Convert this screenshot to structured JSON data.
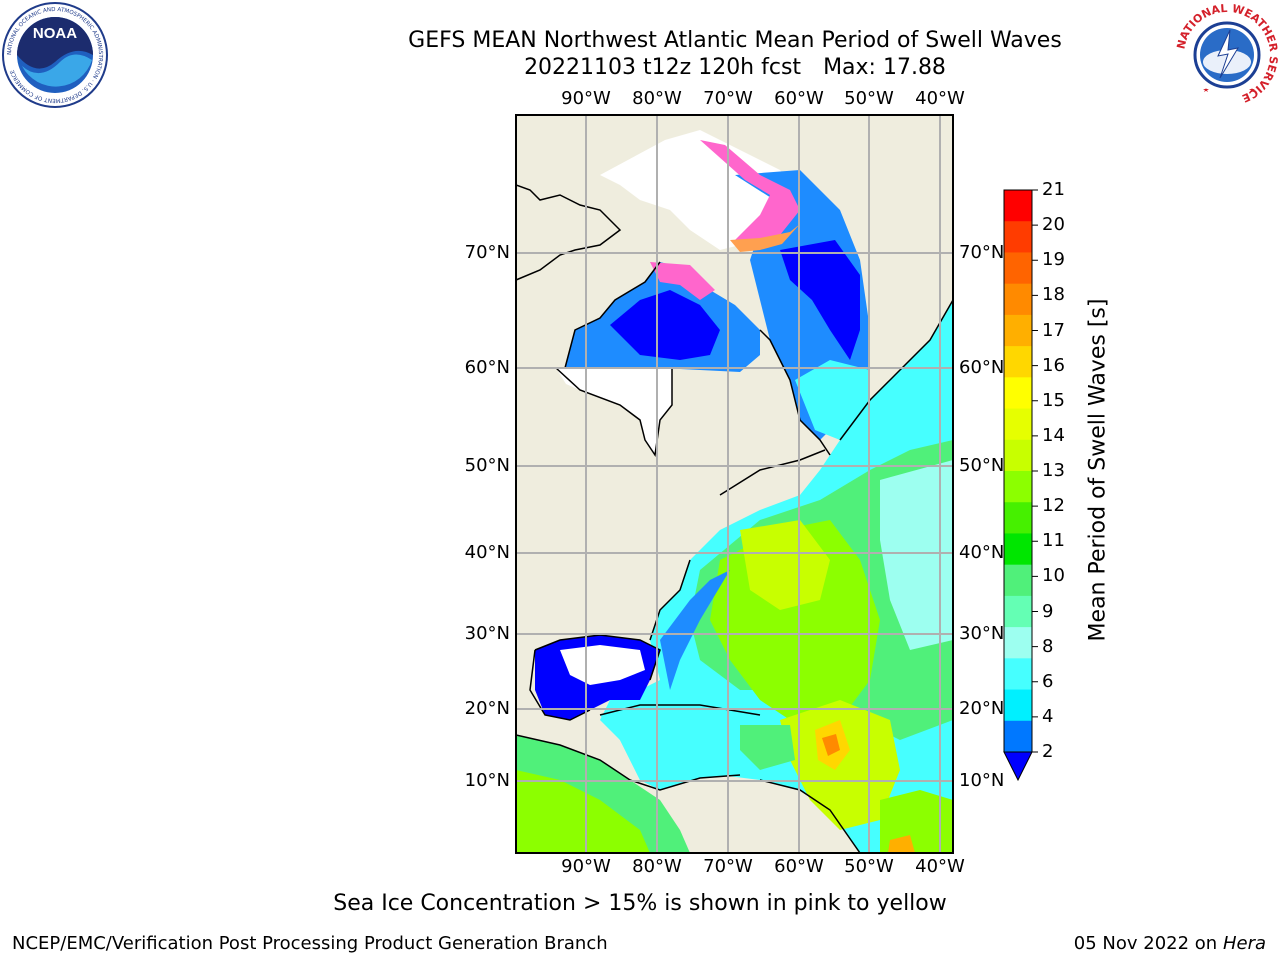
{
  "header": {
    "title_line1": "GEFS MEAN Northwest Atlantic Mean Period of Swell Waves",
    "title_line2_date": "20221103 t12z 120h fcst",
    "title_line2_max": "Max: 17.88"
  },
  "logos": {
    "left_name": "NOAA",
    "left_ring_text": "NATIONAL OCEANIC AND ATMOSPHERIC ADMINISTRATION · U.S. DEPARTMENT OF COMMERCE",
    "right_ring_text": "NATIONAL WEATHER SERVICE"
  },
  "map": {
    "lon_labels": [
      "90°W",
      "80°W",
      "70°W",
      "60°W",
      "50°W",
      "40°W"
    ],
    "lat_labels": [
      "70°N",
      "60°N",
      "50°N",
      "40°N",
      "30°N",
      "20°N",
      "10°N"
    ],
    "colors": {
      "land": "#efedde",
      "ice": "#ffffff",
      "grid": "#b0b0b0",
      "coast": "#000000"
    }
  },
  "colorbar": {
    "label": "Mean Period of Swell Waves [s]",
    "ticks": [
      "21",
      "20",
      "19",
      "18",
      "17",
      "16",
      "15",
      "14",
      "13",
      "12",
      "11",
      "10",
      "9",
      "8",
      "6",
      "4",
      "2"
    ],
    "colors": [
      "#ff0000",
      "#ff3c00",
      "#ff6400",
      "#ff8a00",
      "#ffaf00",
      "#ffd700",
      "#ffff00",
      "#e6ff00",
      "#c8ff00",
      "#8cff00",
      "#46f000",
      "#00e600",
      "#50f07a",
      "#64ffb4",
      "#9dfff0",
      "#46ffff",
      "#00f0ff",
      "#0078ff"
    ],
    "under_color": "#0000ff"
  },
  "notes": {
    "ice_note": "Sea Ice Concentration > 15% is shown in pink to yellow"
  },
  "footer": {
    "left": "NCEP/EMC/Verification Post Processing Product Generation Branch",
    "right_date": "05 Nov 2022 on",
    "right_host": "Hera"
  }
}
